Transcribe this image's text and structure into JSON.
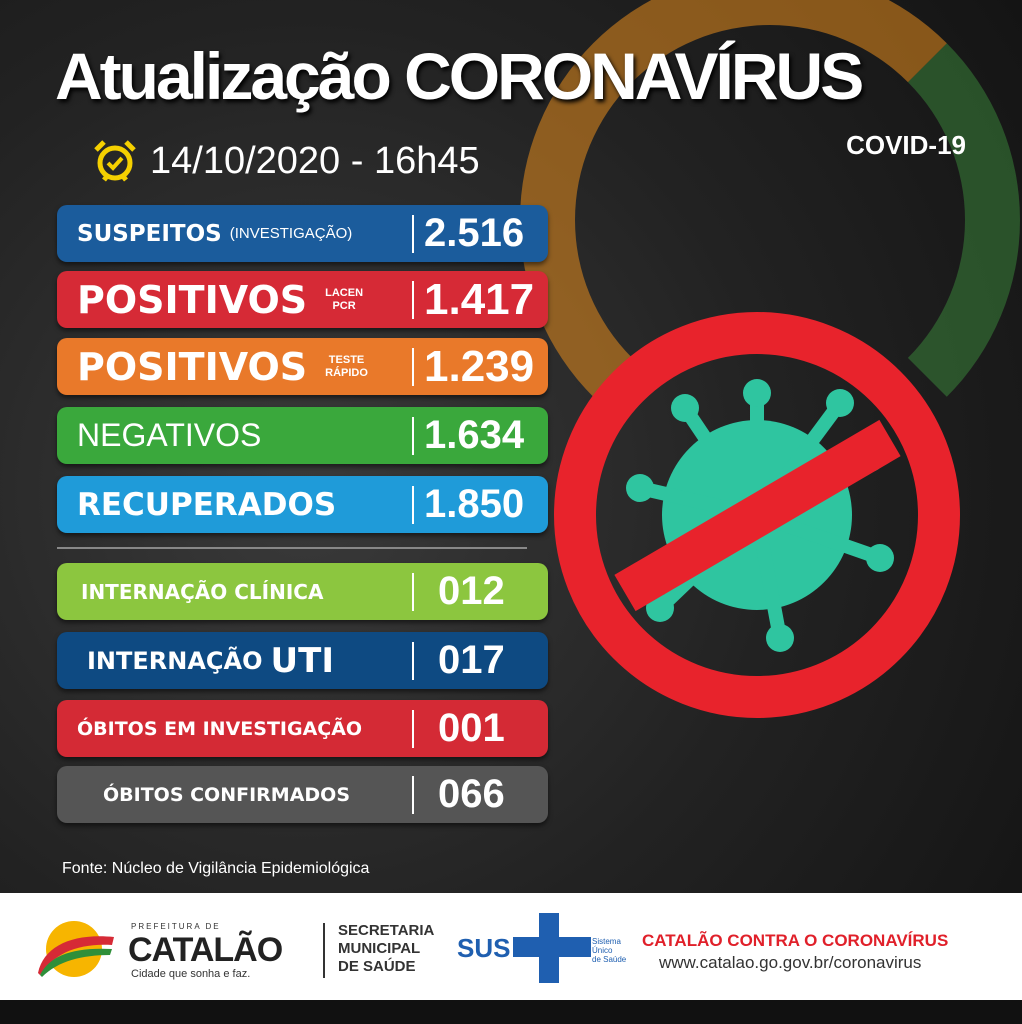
{
  "header": {
    "title": "Atualização CORONAVÍRUS",
    "subtitle": "COVID-19",
    "datetime": "14/10/2020 - 16h45",
    "clock_icon": "alarm-clock-icon"
  },
  "rows": [
    {
      "label": "SUSPEITOS",
      "sub": "(INVESTIGAÇÃO)",
      "value": "2.516",
      "color": "#1b5c9c"
    },
    {
      "label": "POSITIVOS",
      "sub1": "LACEN",
      "sub2": "PCR",
      "value": "1.417",
      "color": "#d62a36"
    },
    {
      "label": "POSITIVOS",
      "sub1": "TESTE",
      "sub2": "RÁPIDO",
      "value": "1.239",
      "color": "#e9792a"
    },
    {
      "label": "NEGATIVOS",
      "value": "1.634",
      "color": "#3aa83c"
    },
    {
      "label": "RECUPERADOS",
      "value": "1.850",
      "color": "#1f9bd9"
    },
    {
      "label": "INTERNAÇÃO CLÍNICA",
      "value": "012",
      "color": "#8cc63f"
    },
    {
      "label_a": "INTERNAÇÃO",
      "label_b": "UTI",
      "value": "017",
      "color": "#0e4a82"
    },
    {
      "label": "ÓBITOS EM INVESTIGAÇÃO",
      "value": "001",
      "color": "#d42a35"
    },
    {
      "label": "ÓBITOS CONFIRMADOS",
      "value": "066",
      "color": "#555555"
    }
  ],
  "source": "Fonte: Núcleo de Vigilância Epidemiológica",
  "footer": {
    "prefeitura": "PREFEITURA DE",
    "city": "CATALÃO",
    "slogan": "Cidade que sonha e faz.",
    "secretaria": [
      "SECRETARIA",
      "MUNICIPAL",
      "DE SAÚDE"
    ],
    "sus": "SUS",
    "sus_sub": [
      "Sistema",
      "Único",
      "de Saúde"
    ],
    "campaign": "CATALÃO CONTRA O CORONAVÍRUS",
    "url": "www.catalao.go.gov.br/coronavirus"
  }
}
